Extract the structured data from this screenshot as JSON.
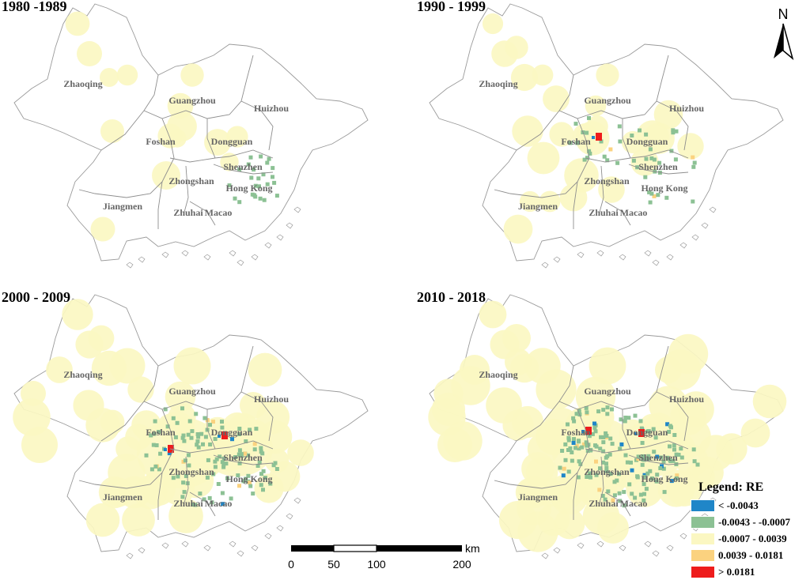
{
  "panels": [
    {
      "title": "1980 -1989",
      "level": 0
    },
    {
      "title": "1990 - 1999",
      "level": 1
    },
    {
      "title": "2000 - 2009",
      "level": 2
    },
    {
      "title": "2010 - 2018",
      "level": 3
    }
  ],
  "cities": [
    "Zhaoqing",
    "Guangzhou",
    "Huizhou",
    "Foshan",
    "Dongguan",
    "Zhongshan",
    "Shenzhen",
    "Hong Kong",
    "Jiangmen",
    "Zhuhai",
    "Macao"
  ],
  "north_label": "N",
  "scale": {
    "unit": "km",
    "ticks": [
      "0",
      "50",
      "100",
      "200"
    ]
  },
  "legend": {
    "title": "Legend: RE",
    "items": [
      {
        "label": "< -0.0043",
        "color": "#1f86c8"
      },
      {
        "label": "-0.0043 - -0.0007",
        "color": "#8cc194"
      },
      {
        "label": "-0.0007 - 0.0039",
        "color": "#fbf7c2"
      },
      {
        "label": "0.0039 - 0.0181",
        "color": "#fbd27f"
      },
      {
        "label": "> 0.0181",
        "color": "#ee1c1c"
      }
    ]
  }
}
